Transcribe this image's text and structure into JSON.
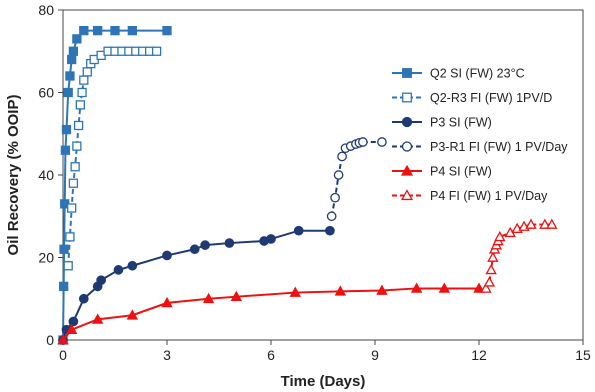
{
  "chart_data": {
    "type": "scatter",
    "xlabel": "Time (Days)",
    "ylabel": "Oil Recovery (% OOIP)",
    "xlim": [
      0,
      15
    ],
    "ylim": [
      0,
      80
    ],
    "xticks": [
      "0",
      "3",
      "6",
      "9",
      "12",
      "15"
    ],
    "yticks": [
      "0",
      "20",
      "40",
      "60",
      "80"
    ],
    "grid": false,
    "legend_position": "right",
    "series": [
      {
        "name": "Q2 SI (FW) 23°C",
        "color": "#2E75B6",
        "marker": "square",
        "filled": true,
        "dashed": false,
        "x": [
          0,
          0.02,
          0.03,
          0.05,
          0.07,
          0.1,
          0.15,
          0.2,
          0.25,
          0.3,
          0.4,
          0.6,
          1.0,
          1.5,
          2.0,
          3.0
        ],
        "y": [
          0,
          13,
          22,
          33,
          46,
          51,
          60,
          64,
          68,
          70,
          73,
          75,
          75,
          75,
          75,
          75
        ]
      },
      {
        "name": "Q2-R3 FI (FW) 1PV/D",
        "color": "#2E75B6",
        "marker": "square",
        "filled": false,
        "dashed": true,
        "x": [
          0.15,
          0.2,
          0.25,
          0.3,
          0.35,
          0.4,
          0.45,
          0.5,
          0.55,
          0.6,
          0.7,
          0.8,
          0.9,
          1.1,
          1.3,
          1.5,
          1.7,
          1.9,
          2.1,
          2.3,
          2.5,
          2.7
        ],
        "y": [
          18,
          25,
          32,
          38,
          42,
          47,
          52,
          57,
          60,
          63,
          65,
          67,
          68,
          69,
          70,
          70,
          70,
          70,
          70,
          70,
          70,
          70
        ]
      },
      {
        "name": "P3 SI (FW)",
        "color": "#1F3A73",
        "marker": "circle",
        "filled": true,
        "dashed": false,
        "x": [
          0,
          0.1,
          0.3,
          0.6,
          1.0,
          1.1,
          1.6,
          2.0,
          3.0,
          3.8,
          4.1,
          4.8,
          5.8,
          6.0,
          6.8,
          7.7
        ],
        "y": [
          0,
          2.5,
          4.5,
          10,
          13,
          14.5,
          17,
          18,
          20.5,
          22,
          23,
          23.5,
          24,
          24.5,
          26.5,
          26.5
        ]
      },
      {
        "name": "P3-R1 FI (FW) 1 PV/Day",
        "color": "#1F3A73",
        "marker": "circle",
        "filled": false,
        "dashed": true,
        "x": [
          7.75,
          7.85,
          7.95,
          8.05,
          8.15,
          8.3,
          8.45,
          8.55,
          8.65,
          9.2
        ],
        "y": [
          30,
          34.5,
          40,
          44.5,
          46.5,
          47,
          47.5,
          47.8,
          48,
          48
        ]
      },
      {
        "name": "P4 SI (FW)",
        "color": "#EE1111",
        "marker": "triangle",
        "filled": true,
        "dashed": false,
        "x": [
          0,
          0.25,
          1.0,
          2.0,
          3.0,
          4.2,
          5.0,
          6.7,
          8.0,
          9.2,
          10.2,
          11.0,
          12.0
        ],
        "y": [
          0,
          2.5,
          5,
          6,
          9,
          10,
          10.5,
          11.5,
          11.8,
          12,
          12.5,
          12.5,
          12.5
        ]
      },
      {
        "name": "P4 FI (FW) 1 PV/Day",
        "color": "#EE1111",
        "marker": "triangle",
        "filled": false,
        "dashed": true,
        "x": [
          12.2,
          12.3,
          12.35,
          12.4,
          12.45,
          12.5,
          12.55,
          12.6,
          12.9,
          13.1,
          13.3,
          13.5,
          13.9,
          14.1
        ],
        "y": [
          12.5,
          14,
          17,
          20,
          22,
          23,
          24,
          25,
          26,
          27,
          27.5,
          28,
          28,
          28
        ]
      }
    ]
  }
}
